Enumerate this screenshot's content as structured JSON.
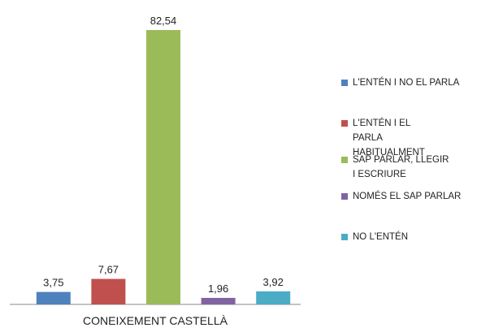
{
  "chart_data": {
    "type": "bar",
    "categories": [
      "CONEIXEMENT CASTELLÀ"
    ],
    "series": [
      {
        "name": "L'ENTÉN I NO EL PARLA",
        "color": "#4f81bd",
        "values": [
          3.75
        ],
        "value_labels": [
          "3,75"
        ]
      },
      {
        "name": "L'ENTÉN I EL PARLA HABITUALMENT",
        "color": "#c0504d",
        "values": [
          7.67
        ],
        "value_labels": [
          "7,67"
        ]
      },
      {
        "name": "SAP PARLAR, LLEGIR I ESCRIURE",
        "color": "#9bbb59",
        "values": [
          82.54
        ],
        "value_labels": [
          "82,54"
        ]
      },
      {
        "name": "NOMÉS EL SAP PARLAR",
        "color": "#8064a2",
        "values": [
          1.96
        ],
        "value_labels": [
          "1,96"
        ]
      },
      {
        "name": "NO L'ENTÉN",
        "color": "#4bacc6",
        "values": [
          3.92
        ],
        "value_labels": [
          "3,92"
        ]
      }
    ],
    "legend": "right"
  }
}
